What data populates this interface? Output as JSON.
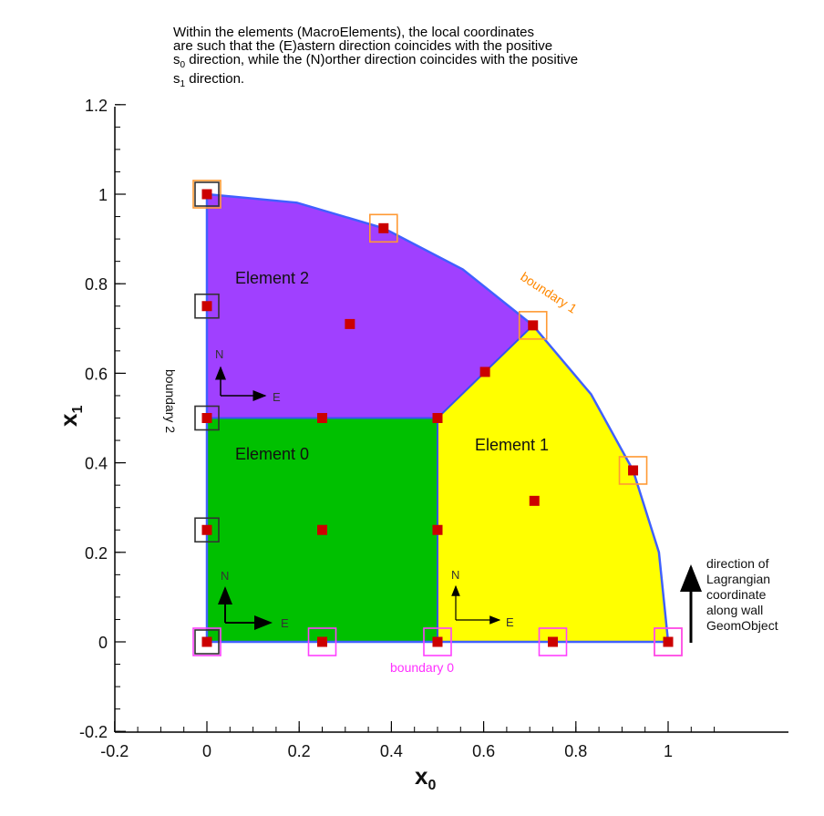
{
  "note": {
    "line1": "Within the elements (MacroElements), the local coordinates",
    "line2": "are such that the (E)astern direction coincides with the positive",
    "line3_pre": "s",
    "line3_sub": "0",
    "line3_post": " direction,  while the (N)orther direction coincides with the positive",
    "line4_pre": "s",
    "line4_sub": "1",
    "line4_post": " direction."
  },
  "axes": {
    "x_label": "x",
    "x_sub": "0",
    "y_label": "x",
    "y_sub": "1",
    "x_ticks": [
      "-0.2",
      "0",
      "0.2",
      "0.4",
      "0.6",
      "0.8",
      "1"
    ],
    "y_ticks": [
      "-0.2",
      "0",
      "0.2",
      "0.4",
      "0.6",
      "0.8",
      "1",
      "1.2"
    ],
    "x_range": [
      -0.2,
      1.15
    ],
    "y_range": [
      -0.2,
      1.2
    ]
  },
  "elements": {
    "e0": "Element 0",
    "e1": "Element 1",
    "e2": "Element 2"
  },
  "directions": {
    "north": "N",
    "east": "E"
  },
  "boundaries": {
    "b0": "boundary 0",
    "b1": "boundary 1",
    "b2": "boundary 2"
  },
  "side_note": [
    "direction of",
    "Lagrangian",
    "coordinate",
    "along wall",
    "GeomObject"
  ],
  "colors": {
    "element0": "#00c000",
    "element1": "#ffff00",
    "element2": "#a040ff",
    "outline": "#4060ff",
    "node": "#cc0000",
    "boundary0": "#ff40ff",
    "boundary1": "#ff9933",
    "boundary2": "#333333"
  },
  "nodes": [
    [
      0,
      0
    ],
    [
      0.25,
      0
    ],
    [
      0.5,
      0
    ],
    [
      0.75,
      0
    ],
    [
      1,
      0
    ],
    [
      0,
      0.25
    ],
    [
      0.25,
      0.25
    ],
    [
      0.5,
      0.25
    ],
    [
      0,
      0.5
    ],
    [
      0.25,
      0.5
    ],
    [
      0.5,
      0.5
    ],
    [
      0,
      0.75
    ],
    [
      0,
      1
    ],
    [
      0.383,
      0.924
    ],
    [
      0.707,
      0.707
    ],
    [
      0.924,
      0.383
    ],
    [
      0.603,
      0.603
    ],
    [
      0.31,
      0.71
    ],
    [
      0.71,
      0.315
    ]
  ],
  "boundary0_nodes": [
    [
      0,
      0
    ],
    [
      0.25,
      0
    ],
    [
      0.5,
      0
    ],
    [
      0.75,
      0
    ],
    [
      1,
      0
    ]
  ],
  "boundary1_nodes": [
    [
      1,
      0
    ],
    [
      0.924,
      0.383
    ],
    [
      0.707,
      0.707
    ],
    [
      0.383,
      0.924
    ],
    [
      0,
      1
    ]
  ],
  "boundary2_nodes": [
    [
      0,
      0
    ],
    [
      0,
      0.25
    ],
    [
      0,
      0.5
    ],
    [
      0,
      0.75
    ],
    [
      0,
      1
    ]
  ]
}
